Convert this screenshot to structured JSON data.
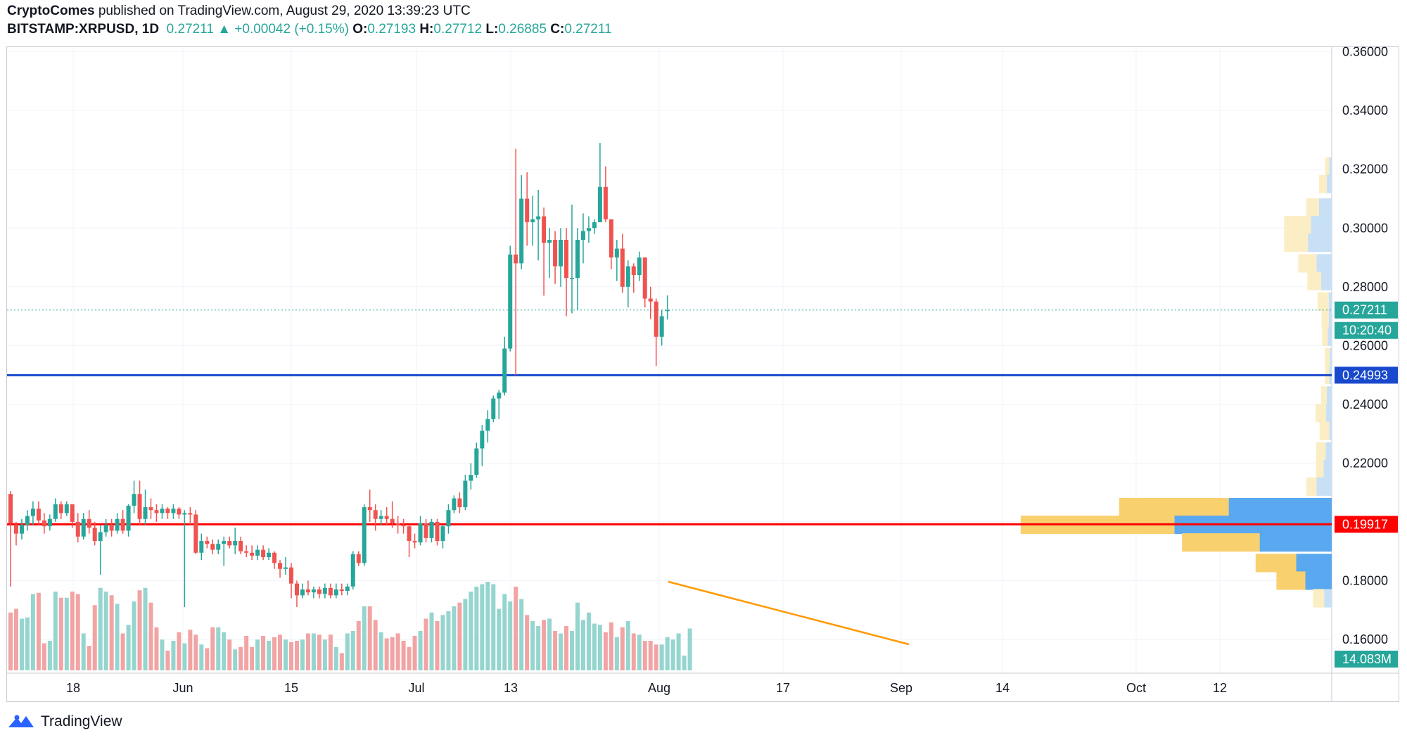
{
  "header": {
    "author": "CryptoComes",
    "published": "published on TradingView.com, August 29, 2020 13:39:23 UTC",
    "symbol": "BITSTAMP:XRPUSD, 1D",
    "last": "0.27211",
    "arrow": "▲",
    "change": "+0.00042 (+0.15%)",
    "o_label": "O:",
    "o": "0.27193",
    "h_label": "H:",
    "h": "0.27712",
    "l_label": "L:",
    "l": "0.26885",
    "c_label": "C:",
    "c": "0.27211"
  },
  "footer": {
    "brand": "TradingView"
  },
  "chart_data": {
    "type": "candlestick",
    "symbol": "BITSTAMP:XRPUSD",
    "interval": "1D",
    "y_axis": {
      "ticks": [
        "0.36000",
        "0.34000",
        "0.32000",
        "0.30000",
        "0.28000",
        "0.26000",
        "0.24000",
        "0.22000",
        "0.20000",
        "0.18000",
        "0.16000"
      ],
      "range": [
        0.1485,
        0.3616
      ]
    },
    "x_axis": {
      "ticks": [
        "18",
        "Jun",
        "15",
        "Jul",
        "13",
        "Aug",
        "17",
        "Sep",
        "14",
        "Oct",
        "12"
      ]
    },
    "candles": [
      {
        "o": 0.2095,
        "h": 0.2105,
        "l": 0.178,
        "c": 0.1995
      },
      {
        "o": 0.199,
        "h": 0.2,
        "l": 0.192,
        "c": 0.196
      },
      {
        "o": 0.196,
        "h": 0.201,
        "l": 0.194,
        "c": 0.199
      },
      {
        "o": 0.199,
        "h": 0.204,
        "l": 0.197,
        "c": 0.202
      },
      {
        "o": 0.202,
        "h": 0.207,
        "l": 0.199,
        "c": 0.2045
      },
      {
        "o": 0.2045,
        "h": 0.207,
        "l": 0.199,
        "c": 0.2005
      },
      {
        "o": 0.2005,
        "h": 0.203,
        "l": 0.196,
        "c": 0.1985
      },
      {
        "o": 0.1985,
        "h": 0.2025,
        "l": 0.197,
        "c": 0.201
      },
      {
        "o": 0.201,
        "h": 0.208,
        "l": 0.2,
        "c": 0.206
      },
      {
        "o": 0.206,
        "h": 0.207,
        "l": 0.201,
        "c": 0.203
      },
      {
        "o": 0.203,
        "h": 0.207,
        "l": 0.202,
        "c": 0.206
      },
      {
        "o": 0.206,
        "h": 0.206,
        "l": 0.198,
        "c": 0.2
      },
      {
        "o": 0.2,
        "h": 0.203,
        "l": 0.193,
        "c": 0.195
      },
      {
        "o": 0.195,
        "h": 0.203,
        "l": 0.194,
        "c": 0.201
      },
      {
        "o": 0.201,
        "h": 0.204,
        "l": 0.196,
        "c": 0.198
      },
      {
        "o": 0.198,
        "h": 0.2,
        "l": 0.192,
        "c": 0.1935
      },
      {
        "o": 0.1935,
        "h": 0.199,
        "l": 0.182,
        "c": 0.1965
      },
      {
        "o": 0.1965,
        "h": 0.201,
        "l": 0.195,
        "c": 0.199
      },
      {
        "o": 0.199,
        "h": 0.201,
        "l": 0.195,
        "c": 0.197
      },
      {
        "o": 0.197,
        "h": 0.203,
        "l": 0.196,
        "c": 0.201
      },
      {
        "o": 0.201,
        "h": 0.204,
        "l": 0.196,
        "c": 0.197
      },
      {
        "o": 0.197,
        "h": 0.206,
        "l": 0.195,
        "c": 0.2055
      },
      {
        "o": 0.2055,
        "h": 0.214,
        "l": 0.203,
        "c": 0.2095
      },
      {
        "o": 0.2095,
        "h": 0.214,
        "l": 0.199,
        "c": 0.201
      },
      {
        "o": 0.201,
        "h": 0.211,
        "l": 0.199,
        "c": 0.205
      },
      {
        "o": 0.205,
        "h": 0.208,
        "l": 0.201,
        "c": 0.204
      },
      {
        "o": 0.204,
        "h": 0.206,
        "l": 0.2,
        "c": 0.203
      },
      {
        "o": 0.203,
        "h": 0.206,
        "l": 0.201,
        "c": 0.2045
      },
      {
        "o": 0.2045,
        "h": 0.205,
        "l": 0.201,
        "c": 0.203
      },
      {
        "o": 0.203,
        "h": 0.206,
        "l": 0.201,
        "c": 0.2045
      },
      {
        "o": 0.2045,
        "h": 0.205,
        "l": 0.201,
        "c": 0.2025
      },
      {
        "o": 0.2025,
        "h": 0.204,
        "l": 0.171,
        "c": 0.203
      },
      {
        "o": 0.203,
        "h": 0.205,
        "l": 0.199,
        "c": 0.2025
      },
      {
        "o": 0.2025,
        "h": 0.204,
        "l": 0.189,
        "c": 0.1895
      },
      {
        "o": 0.1895,
        "h": 0.196,
        "l": 0.187,
        "c": 0.1935
      },
      {
        "o": 0.1935,
        "h": 0.195,
        "l": 0.191,
        "c": 0.1925
      },
      {
        "o": 0.1925,
        "h": 0.194,
        "l": 0.189,
        "c": 0.1905
      },
      {
        "o": 0.1905,
        "h": 0.194,
        "l": 0.189,
        "c": 0.1925
      },
      {
        "o": 0.1925,
        "h": 0.195,
        "l": 0.185,
        "c": 0.1935
      },
      {
        "o": 0.1935,
        "h": 0.195,
        "l": 0.191,
        "c": 0.192
      },
      {
        "o": 0.192,
        "h": 0.198,
        "l": 0.189,
        "c": 0.1935
      },
      {
        "o": 0.1935,
        "h": 0.195,
        "l": 0.189,
        "c": 0.19
      },
      {
        "o": 0.19,
        "h": 0.192,
        "l": 0.188,
        "c": 0.1895
      },
      {
        "o": 0.1895,
        "h": 0.192,
        "l": 0.187,
        "c": 0.1885
      },
      {
        "o": 0.1885,
        "h": 0.192,
        "l": 0.187,
        "c": 0.1905
      },
      {
        "o": 0.1905,
        "h": 0.192,
        "l": 0.187,
        "c": 0.188
      },
      {
        "o": 0.188,
        "h": 0.191,
        "l": 0.187,
        "c": 0.1895
      },
      {
        "o": 0.1895,
        "h": 0.19,
        "l": 0.184,
        "c": 0.186
      },
      {
        "o": 0.186,
        "h": 0.187,
        "l": 0.181,
        "c": 0.184
      },
      {
        "o": 0.184,
        "h": 0.188,
        "l": 0.182,
        "c": 0.1845
      },
      {
        "o": 0.1845,
        "h": 0.186,
        "l": 0.174,
        "c": 0.179
      },
      {
        "o": 0.179,
        "h": 0.18,
        "l": 0.171,
        "c": 0.175
      },
      {
        "o": 0.175,
        "h": 0.179,
        "l": 0.174,
        "c": 0.177
      },
      {
        "o": 0.177,
        "h": 0.18,
        "l": 0.175,
        "c": 0.176
      },
      {
        "o": 0.176,
        "h": 0.178,
        "l": 0.174,
        "c": 0.177
      },
      {
        "o": 0.177,
        "h": 0.178,
        "l": 0.174,
        "c": 0.1755
      },
      {
        "o": 0.1755,
        "h": 0.179,
        "l": 0.174,
        "c": 0.1775
      },
      {
        "o": 0.1775,
        "h": 0.179,
        "l": 0.174,
        "c": 0.175
      },
      {
        "o": 0.175,
        "h": 0.179,
        "l": 0.174,
        "c": 0.177
      },
      {
        "o": 0.177,
        "h": 0.179,
        "l": 0.175,
        "c": 0.1765
      },
      {
        "o": 0.1765,
        "h": 0.179,
        "l": 0.175,
        "c": 0.178
      },
      {
        "o": 0.178,
        "h": 0.19,
        "l": 0.177,
        "c": 0.189
      },
      {
        "o": 0.189,
        "h": 0.19,
        "l": 0.185,
        "c": 0.186
      },
      {
        "o": 0.186,
        "h": 0.206,
        "l": 0.185,
        "c": 0.205
      },
      {
        "o": 0.205,
        "h": 0.211,
        "l": 0.2,
        "c": 0.204
      },
      {
        "o": 0.204,
        "h": 0.206,
        "l": 0.197,
        "c": 0.201
      },
      {
        "o": 0.201,
        "h": 0.204,
        "l": 0.199,
        "c": 0.202
      },
      {
        "o": 0.202,
        "h": 0.205,
        "l": 0.199,
        "c": 0.201
      },
      {
        "o": 0.201,
        "h": 0.207,
        "l": 0.198,
        "c": 0.1995
      },
      {
        "o": 0.1995,
        "h": 0.202,
        "l": 0.196,
        "c": 0.199
      },
      {
        "o": 0.199,
        "h": 0.201,
        "l": 0.196,
        "c": 0.1985
      },
      {
        "o": 0.1985,
        "h": 0.199,
        "l": 0.188,
        "c": 0.1935
      },
      {
        "o": 0.1935,
        "h": 0.196,
        "l": 0.191,
        "c": 0.193
      },
      {
        "o": 0.193,
        "h": 0.202,
        "l": 0.192,
        "c": 0.1995
      },
      {
        "o": 0.1995,
        "h": 0.201,
        "l": 0.193,
        "c": 0.1945
      },
      {
        "o": 0.1945,
        "h": 0.201,
        "l": 0.193,
        "c": 0.2
      },
      {
        "o": 0.2,
        "h": 0.201,
        "l": 0.192,
        "c": 0.1935
      },
      {
        "o": 0.1935,
        "h": 0.199,
        "l": 0.191,
        "c": 0.1985
      },
      {
        "o": 0.1985,
        "h": 0.206,
        "l": 0.196,
        "c": 0.204
      },
      {
        "o": 0.204,
        "h": 0.209,
        "l": 0.203,
        "c": 0.208
      },
      {
        "o": 0.208,
        "h": 0.21,
        "l": 0.203,
        "c": 0.205
      },
      {
        "o": 0.205,
        "h": 0.216,
        "l": 0.204,
        "c": 0.214
      },
      {
        "o": 0.214,
        "h": 0.22,
        "l": 0.211,
        "c": 0.216
      },
      {
        "o": 0.216,
        "h": 0.227,
        "l": 0.215,
        "c": 0.225
      },
      {
        "o": 0.225,
        "h": 0.233,
        "l": 0.219,
        "c": 0.231
      },
      {
        "o": 0.231,
        "h": 0.238,
        "l": 0.227,
        "c": 0.235
      },
      {
        "o": 0.235,
        "h": 0.243,
        "l": 0.234,
        "c": 0.242
      },
      {
        "o": 0.242,
        "h": 0.245,
        "l": 0.235,
        "c": 0.244
      },
      {
        "o": 0.244,
        "h": 0.263,
        "l": 0.243,
        "c": 0.259
      },
      {
        "o": 0.259,
        "h": 0.294,
        "l": 0.258,
        "c": 0.291
      },
      {
        "o": 0.291,
        "h": 0.327,
        "l": 0.25,
        "c": 0.288
      },
      {
        "o": 0.288,
        "h": 0.318,
        "l": 0.286,
        "c": 0.31
      },
      {
        "o": 0.31,
        "h": 0.319,
        "l": 0.294,
        "c": 0.302
      },
      {
        "o": 0.302,
        "h": 0.311,
        "l": 0.294,
        "c": 0.303
      },
      {
        "o": 0.303,
        "h": 0.313,
        "l": 0.289,
        "c": 0.304
      },
      {
        "o": 0.304,
        "h": 0.307,
        "l": 0.277,
        "c": 0.295
      },
      {
        "o": 0.295,
        "h": 0.3,
        "l": 0.283,
        "c": 0.296
      },
      {
        "o": 0.296,
        "h": 0.299,
        "l": 0.281,
        "c": 0.287
      },
      {
        "o": 0.287,
        "h": 0.3,
        "l": 0.28,
        "c": 0.296
      },
      {
        "o": 0.296,
        "h": 0.3,
        "l": 0.27,
        "c": 0.283
      },
      {
        "o": 0.283,
        "h": 0.308,
        "l": 0.271,
        "c": 0.283
      },
      {
        "o": 0.283,
        "h": 0.3,
        "l": 0.272,
        "c": 0.296
      },
      {
        "o": 0.296,
        "h": 0.305,
        "l": 0.288,
        "c": 0.299
      },
      {
        "o": 0.299,
        "h": 0.304,
        "l": 0.295,
        "c": 0.3
      },
      {
        "o": 0.3,
        "h": 0.303,
        "l": 0.298,
        "c": 0.302
      },
      {
        "o": 0.302,
        "h": 0.329,
        "l": 0.302,
        "c": 0.314
      },
      {
        "o": 0.314,
        "h": 0.321,
        "l": 0.302,
        "c": 0.303
      },
      {
        "o": 0.303,
        "h": 0.303,
        "l": 0.286,
        "c": 0.29
      },
      {
        "o": 0.29,
        "h": 0.296,
        "l": 0.282,
        "c": 0.293
      },
      {
        "o": 0.293,
        "h": 0.298,
        "l": 0.278,
        "c": 0.28
      },
      {
        "o": 0.28,
        "h": 0.289,
        "l": 0.273,
        "c": 0.287
      },
      {
        "o": 0.287,
        "h": 0.288,
        "l": 0.278,
        "c": 0.284
      },
      {
        "o": 0.284,
        "h": 0.292,
        "l": 0.282,
        "c": 0.29
      },
      {
        "o": 0.29,
        "h": 0.29,
        "l": 0.273,
        "c": 0.276
      },
      {
        "o": 0.276,
        "h": 0.28,
        "l": 0.269,
        "c": 0.275
      },
      {
        "o": 0.275,
        "h": 0.276,
        "l": 0.253,
        "c": 0.263
      },
      {
        "o": 0.263,
        "h": 0.272,
        "l": 0.26,
        "c": 0.27
      },
      {
        "o": 0.2719,
        "h": 0.2771,
        "l": 0.2689,
        "c": 0.2721
      }
    ],
    "volume": {
      "last_label": "14.083M",
      "bars": [
        0.47,
        0.5,
        0.42,
        0.43,
        0.62,
        0.63,
        0.22,
        0.24,
        0.64,
        0.59,
        0.59,
        0.64,
        0.62,
        0.3,
        0.2,
        0.53,
        0.67,
        0.64,
        0.61,
        0.54,
        0.3,
        0.37,
        0.56,
        0.65,
        0.67,
        0.55,
        0.35,
        0.25,
        0.16,
        0.24,
        0.31,
        0.22,
        0.33,
        0.29,
        0.21,
        0.18,
        0.35,
        0.35,
        0.31,
        0.25,
        0.17,
        0.19,
        0.28,
        0.19,
        0.25,
        0.28,
        0.24,
        0.27,
        0.29,
        0.25,
        0.23,
        0.24,
        0.25,
        0.3,
        0.3,
        0.29,
        0.25,
        0.29,
        0.19,
        0.14,
        0.3,
        0.32,
        0.4,
        0.52,
        0.52,
        0.41,
        0.31,
        0.26,
        0.27,
        0.3,
        0.24,
        0.19,
        0.28,
        0.32,
        0.42,
        0.47,
        0.4,
        0.45,
        0.48,
        0.52,
        0.55,
        0.58,
        0.64,
        0.68,
        0.7,
        0.72,
        0.7,
        0.5,
        0.62,
        0.56,
        0.68,
        0.58,
        0.45,
        0.4,
        0.36,
        0.41,
        0.42,
        0.32,
        0.3,
        0.36,
        0.32,
        0.55,
        0.41,
        0.47,
        0.38,
        0.37,
        0.31,
        0.39,
        0.27,
        0.35,
        0.4,
        0.3,
        0.29,
        0.24,
        0.24,
        0.21,
        0.21,
        0.27,
        0.25,
        0.3,
        0.12,
        0.34
      ],
      "range": [
        0,
        1
      ]
    },
    "horizontal_lines": [
      {
        "value": 0.24993,
        "color": "#1848cc",
        "label": "0.24993"
      },
      {
        "value": 0.19917,
        "color": "#ff0000",
        "label": "0.19917"
      }
    ],
    "price_line": {
      "value": 0.27211,
      "label": "0.27211",
      "countdown": "10:20:40",
      "color": "#26a69a"
    },
    "volume_profile": [
      {
        "price": 0.321,
        "up": 0.08,
        "down": 0.05
      },
      {
        "price": 0.315,
        "up": 0.15,
        "down": 0.1
      },
      {
        "price": 0.307,
        "up": 0.25,
        "down": 0.25
      },
      {
        "price": 0.301,
        "up": 0.53,
        "down": 0.41
      },
      {
        "price": 0.295,
        "up": 0.47,
        "down": 0.47
      },
      {
        "price": 0.288,
        "up": 0.36,
        "down": 0.3
      },
      {
        "price": 0.282,
        "up": 0.27,
        "down": 0.21
      },
      {
        "price": 0.275,
        "up": 0.22,
        "down": 0.06
      },
      {
        "price": 0.269,
        "up": 0.14,
        "down": 0.06
      },
      {
        "price": 0.263,
        "up": 0.11,
        "down": 0.08
      },
      {
        "price": 0.256,
        "up": 0.1,
        "down": 0.04
      },
      {
        "price": 0.25,
        "up": 0.08,
        "down": 0.05
      },
      {
        "price": 0.243,
        "up": 0.11,
        "down": 0.1
      },
      {
        "price": 0.237,
        "up": 0.21,
        "down": 0.11
      },
      {
        "price": 0.231,
        "up": 0.19,
        "down": 0.05
      },
      {
        "price": 0.224,
        "up": 0.19,
        "down": 0.12
      },
      {
        "price": 0.218,
        "up": 0.15,
        "down": 0.16
      },
      {
        "price": 0.212,
        "up": 0.2,
        "down": 0.3
      },
      {
        "price": 0.205,
        "up": 2.16,
        "down": 2.03
      },
      {
        "price": 0.199,
        "up": 3.03,
        "down": 3.1
      },
      {
        "price": 0.193,
        "up": 1.53,
        "down": 1.42
      },
      {
        "price": 0.186,
        "up": 0.8,
        "down": 0.7
      },
      {
        "price": 0.18,
        "up": 0.57,
        "down": 0.52
      },
      {
        "price": 0.174,
        "up": 0.22,
        "down": 0.15
      }
    ],
    "colors": {
      "up": "#26a69a",
      "down": "#ef5350",
      "vol_up": "#95d5cf",
      "vol_down": "#f2a4a4",
      "profile_up": "#f9d06e",
      "profile_down": "#5aa8f0",
      "profile_up_light": "#fbeec4",
      "profile_down_light": "#c8e0f6",
      "trendline": "#ff9800",
      "grid": "#f0f3fa"
    },
    "grid": true
  }
}
